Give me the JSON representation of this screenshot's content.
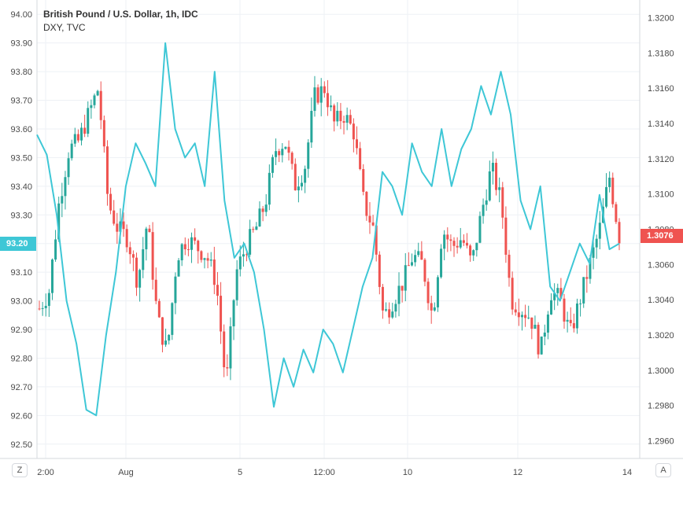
{
  "title": "British Pound / U.S. Dollar, 1h, IDC",
  "subtitle": "DXY, TVC",
  "buttons": {
    "left": "Z",
    "right": "A"
  },
  "colors": {
    "candle_up": "#26a69a",
    "candle_down": "#ef5350",
    "dxy_line": "#3ec7d6",
    "grid": "#eef1f5",
    "left_tag": "#3ec7d6",
    "right_tag": "#ef5350"
  },
  "chart_data": {
    "type": "line",
    "series": [
      {
        "name": "British Pound / U.S. Dollar",
        "kind": "candlestick",
        "axis": "right",
        "close_samples": [
          1.3035,
          1.3045,
          1.3095,
          1.3125,
          1.313,
          1.3145,
          1.316,
          1.3095,
          1.308,
          1.3075,
          1.305,
          1.3085,
          1.303,
          1.301,
          1.3065,
          1.3075,
          1.307,
          1.3065,
          1.305,
          1.299,
          1.3055,
          1.307,
          1.308,
          1.3095,
          1.3125,
          1.313,
          1.3105,
          1.3115,
          1.3155,
          1.316,
          1.314,
          1.3145,
          1.3135,
          1.3095,
          1.308,
          1.303,
          1.304,
          1.305,
          1.3065,
          1.306,
          1.303,
          1.308,
          1.307,
          1.3075,
          1.306,
          1.309,
          1.3115,
          1.3095,
          1.304,
          1.3035,
          1.303,
          1.301,
          1.3045,
          1.304,
          1.302,
          1.304,
          1.306,
          1.308,
          1.311,
          1.3076
        ]
      },
      {
        "name": "DXY, TVC",
        "kind": "line",
        "axis": "left",
        "values": [
          93.58,
          93.51,
          93.3,
          93.0,
          92.85,
          92.62,
          92.6,
          92.88,
          93.1,
          93.4,
          93.55,
          93.48,
          93.4,
          93.9,
          93.6,
          93.5,
          93.55,
          93.4,
          93.8,
          93.35,
          93.15,
          93.2,
          93.1,
          92.9,
          92.63,
          92.8,
          92.7,
          92.83,
          92.75,
          92.9,
          92.85,
          92.75,
          92.9,
          93.05,
          93.15,
          93.45,
          93.4,
          93.3,
          93.55,
          93.45,
          93.4,
          93.6,
          93.4,
          93.53,
          93.6,
          93.75,
          93.65,
          93.8,
          93.65,
          93.35,
          93.25,
          93.4,
          93.05,
          93.0,
          93.1,
          93.2,
          93.13,
          93.37,
          93.18,
          93.2
        ]
      }
    ],
    "x_labels": [
      "2:00",
      "Aug",
      "5",
      "12:00",
      "10",
      "12",
      "14"
    ],
    "y_left": {
      "ticks": [
        "94.00",
        "93.90",
        "93.80",
        "93.70",
        "93.60",
        "93.50",
        "93.40",
        "93.30",
        "93.20",
        "93.10",
        "93.00",
        "92.90",
        "92.80",
        "92.70",
        "92.60",
        "92.50"
      ],
      "range": [
        92.45,
        94.05
      ]
    },
    "y_right": {
      "ticks": [
        "1.3200",
        "1.3180",
        "1.3160",
        "1.3140",
        "1.3120",
        "1.3100",
        "1.3080",
        "1.3060",
        "1.3040",
        "1.3020",
        "1.3000",
        "1.2980",
        "1.2960"
      ],
      "range": [
        1.295,
        1.321
      ]
    },
    "current": {
      "left": "93.20",
      "right": "1.3076"
    },
    "grid": true
  }
}
